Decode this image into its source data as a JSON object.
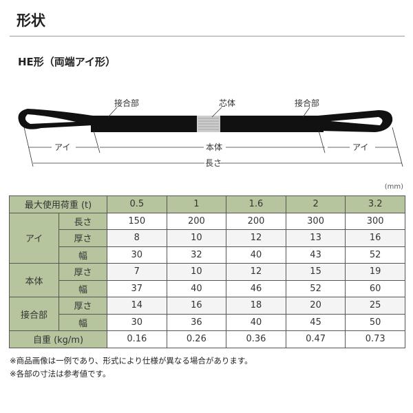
{
  "title": "形状",
  "subtitle": "HE形（両端アイ形）",
  "diagram": {
    "joint_left": "接合部",
    "core": "芯体",
    "joint_right": "接合部",
    "eye_left": "アイ",
    "body": "本体",
    "eye_right": "アイ",
    "length": "長さ"
  },
  "unit": "(mm)",
  "table": {
    "header": "最大使用荷重 (t)",
    "loads": [
      "0.5",
      "1",
      "1.6",
      "2",
      "3.2"
    ],
    "groups": [
      {
        "label": "アイ",
        "rows": [
          {
            "label": "長さ",
            "values": [
              "150",
              "200",
              "200",
              "300",
              "300"
            ]
          },
          {
            "label": "厚さ",
            "values": [
              "8",
              "10",
              "12",
              "13",
              "16"
            ]
          },
          {
            "label": "幅",
            "values": [
              "30",
              "32",
              "40",
              "43",
              "52"
            ]
          }
        ]
      },
      {
        "label": "本体",
        "rows": [
          {
            "label": "厚さ",
            "values": [
              "7",
              "10",
              "12",
              "15",
              "19"
            ]
          },
          {
            "label": "幅",
            "values": [
              "37",
              "40",
              "46",
              "52",
              "60"
            ]
          }
        ]
      },
      {
        "label": "接合部",
        "rows": [
          {
            "label": "厚さ",
            "values": [
              "14",
              "16",
              "18",
              "20",
              "25"
            ]
          },
          {
            "label": "幅",
            "values": [
              "30",
              "36",
              "40",
              "45",
              "50"
            ]
          }
        ]
      }
    ],
    "weight_label": "自重 (kg/m)",
    "weights": [
      "0.16",
      "0.26",
      "0.36",
      "0.47",
      "0.73"
    ]
  },
  "notes": [
    "※商品画像は一例であり、形式により仕様が異なる場合があります。",
    "※各部の寸法は参考値です。"
  ],
  "colors": {
    "header_bg": "#b7c59e"
  }
}
